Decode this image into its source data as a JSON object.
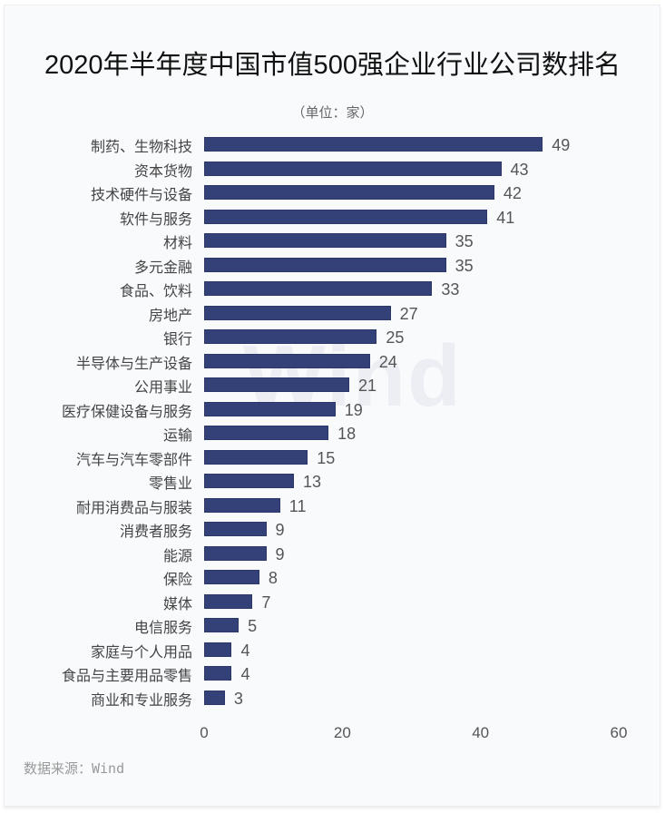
{
  "chart_data": {
    "type": "bar",
    "orientation": "horizontal",
    "title": "2020年半年度中国市值500强企业行业公司数排名",
    "subtitle": "（单位：家）",
    "xlabel": "",
    "ylabel": "",
    "xlim": [
      0,
      60
    ],
    "x_ticks": [
      "0",
      "20",
      "40",
      "60"
    ],
    "grid": false,
    "legend": null,
    "bar_color": "#344178",
    "categories": [
      "制药、生物科技",
      "资本货物",
      "技术硬件与设备",
      "软件与服务",
      "材料",
      "多元金融",
      "食品、饮料",
      "房地产",
      "银行",
      "半导体与生产设备",
      "公用事业",
      "医疗保健设备与服务",
      "运输",
      "汽车与汽车零部件",
      "零售业",
      "耐用消费品与服装",
      "消费者服务",
      "能源",
      "保险",
      "媒体",
      "电信服务",
      "家庭与个人用品",
      "食品与主要用品零售",
      "商业和专业服务"
    ],
    "values": [
      49,
      43,
      42,
      41,
      35,
      35,
      33,
      27,
      25,
      24,
      21,
      19,
      18,
      15,
      13,
      11,
      9,
      9,
      8,
      7,
      5,
      4,
      4,
      3
    ]
  },
  "watermark": "Wind",
  "source": "数据来源：Wind"
}
